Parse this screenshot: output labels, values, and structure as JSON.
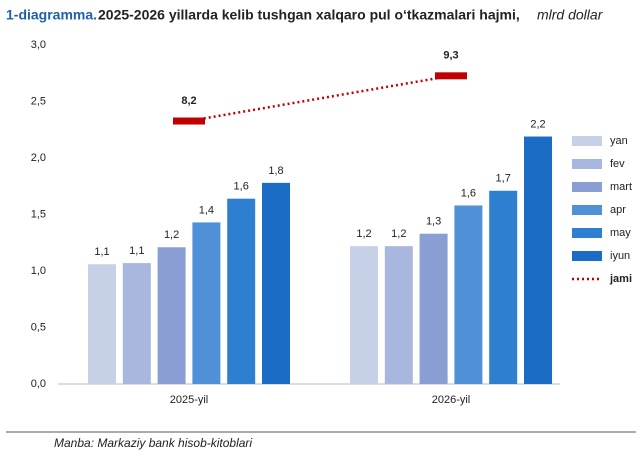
{
  "chart_data": {
    "type": "bar",
    "title_prefix": "1-diagramma.",
    "title": "2025-2026 yillarda kelib tushgan xalqaro pul o‘tkazmalari hajmi,",
    "title_unit": "mlrd dollar",
    "source": "Manba: Markaziy bank hisob-kitoblari",
    "categories": [
      "2025-yil",
      "2026-yil"
    ],
    "series": [
      {
        "name": "yan",
        "color": "#c6d0e7",
        "values": [
          1.06,
          1.22
        ],
        "value_labels": [
          "1,1",
          "1,2"
        ]
      },
      {
        "name": "fev",
        "color": "#a9b7de",
        "values": [
          1.07,
          1.22
        ],
        "value_labels": [
          "1,1",
          "1,2"
        ]
      },
      {
        "name": "mart",
        "color": "#8a9ed3",
        "values": [
          1.21,
          1.33
        ],
        "value_labels": [
          "1,2",
          "1,3"
        ]
      },
      {
        "name": "apr",
        "color": "#4f90d7",
        "values": [
          1.43,
          1.58
        ],
        "value_labels": [
          "1,4",
          "1,6"
        ]
      },
      {
        "name": "may",
        "color": "#2f7fd0",
        "values": [
          1.64,
          1.71
        ],
        "value_labels": [
          "1,6",
          "1,7"
        ]
      },
      {
        "name": "iyun",
        "color": "#1b6cc4",
        "values": [
          1.78,
          2.19
        ],
        "value_labels": [
          "1,8",
          "2,2"
        ]
      },
      {
        "name": "jami",
        "color": "#c00000",
        "type": "line",
        "axis": "y2",
        "values": [
          8.2,
          9.3
        ],
        "value_labels": [
          "8,2",
          "9,3"
        ]
      }
    ],
    "ylim": [
      0,
      3.0
    ],
    "yticks": [
      {
        "value": 0,
        "label": "0,0"
      },
      {
        "value": 0.5,
        "label": "0,5"
      },
      {
        "value": 1.0,
        "label": "1,0"
      },
      {
        "value": 1.5,
        "label": "1,5"
      },
      {
        "value": 2.0,
        "label": "2,0"
      },
      {
        "value": 2.5,
        "label": "2,5"
      },
      {
        "value": 3.0,
        "label": "3,0"
      }
    ],
    "y2lim": [
      1.8,
      10.05
    ],
    "legend": "right"
  }
}
